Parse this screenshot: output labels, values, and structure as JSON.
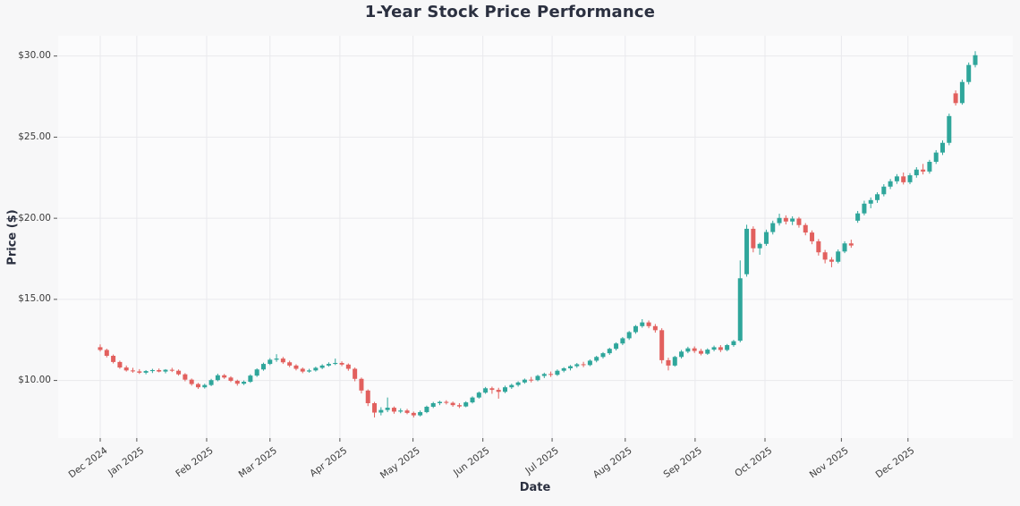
{
  "title": "1-Year Stock Price Performance",
  "colors": {
    "up": "#2fa69b",
    "down": "#e2605e",
    "figure_background": "#f7f7f8",
    "plot_background": "#fbfbfc",
    "grid": "#e9e9ed",
    "text": "#2b3040",
    "tick_text": "#3b3b3b"
  },
  "chart_data": {
    "type": "candlestick",
    "title": "1-Year Stock Price Performance",
    "xlabel": "Date",
    "ylabel": "Price ($)",
    "grid": true,
    "legend": false,
    "ylim": [
      6.45,
      31.25
    ],
    "y_ticks": [
      {
        "label": "$10.00",
        "value": 10
      },
      {
        "label": "$15.00",
        "value": 15
      },
      {
        "label": "$20.00",
        "value": 20
      },
      {
        "label": "$25.00",
        "value": 25
      },
      {
        "label": "$30.00",
        "value": 30
      }
    ],
    "x_ticks": [
      {
        "label": "Dec 2024",
        "index": 0
      },
      {
        "label": "Jan 2025",
        "index": 5.6
      },
      {
        "label": "Feb 2025",
        "index": 16.3
      },
      {
        "label": "Mar 2025",
        "index": 26.0
      },
      {
        "label": "Apr 2025",
        "index": 36.7
      },
      {
        "label": "May 2025",
        "index": 47.9
      },
      {
        "label": "Jun 2025",
        "index": 58.6
      },
      {
        "label": "Jul 2025",
        "index": 69.2
      },
      {
        "label": "Aug 2025",
        "index": 80.4
      },
      {
        "label": "Sep 2025",
        "index": 91.1
      },
      {
        "label": "Oct 2025",
        "index": 101.8
      },
      {
        "label": "Nov 2025",
        "index": 113.5
      },
      {
        "label": "Dec 2025",
        "index": 123.7
      }
    ],
    "date_range": {
      "start": "Dec 2024",
      "end": "Dec 2025"
    },
    "ohlc_format": [
      "open",
      "high",
      "low",
      "close"
    ],
    "ohlc": [
      [
        12.05,
        12.22,
        11.78,
        11.88
      ],
      [
        11.88,
        11.96,
        11.42,
        11.52
      ],
      [
        11.52,
        11.6,
        11.05,
        11.14
      ],
      [
        11.14,
        11.22,
        10.72,
        10.8
      ],
      [
        10.8,
        10.92,
        10.55,
        10.62
      ],
      [
        10.62,
        10.78,
        10.48,
        10.56
      ],
      [
        10.56,
        10.7,
        10.4,
        10.48
      ],
      [
        10.48,
        10.64,
        10.38,
        10.58
      ],
      [
        10.58,
        10.72,
        10.46,
        10.64
      ],
      [
        10.64,
        10.74,
        10.5,
        10.55
      ],
      [
        10.55,
        10.7,
        10.44,
        10.66
      ],
      [
        10.66,
        10.78,
        10.52,
        10.6
      ],
      [
        10.6,
        10.68,
        10.3,
        10.38
      ],
      [
        10.38,
        10.45,
        9.95,
        10.05
      ],
      [
        10.05,
        10.12,
        9.68,
        9.78
      ],
      [
        9.78,
        9.85,
        9.48,
        9.58
      ],
      [
        9.58,
        9.8,
        9.5,
        9.72
      ],
      [
        9.72,
        10.1,
        9.65,
        10.02
      ],
      [
        10.02,
        10.42,
        9.95,
        10.32
      ],
      [
        10.32,
        10.4,
        10.1,
        10.18
      ],
      [
        10.18,
        10.26,
        9.9,
        9.98
      ],
      [
        9.98,
        10.05,
        9.68,
        9.8
      ],
      [
        9.8,
        10.0,
        9.72,
        9.92
      ],
      [
        9.92,
        10.38,
        9.85,
        10.3
      ],
      [
        10.3,
        10.75,
        10.22,
        10.68
      ],
      [
        10.68,
        11.1,
        10.6,
        11.02
      ],
      [
        11.02,
        11.38,
        10.95,
        11.28
      ],
      [
        11.28,
        11.62,
        11.15,
        11.35
      ],
      [
        11.35,
        11.45,
        11.02,
        11.12
      ],
      [
        11.12,
        11.22,
        10.82,
        10.92
      ],
      [
        10.92,
        11.0,
        10.62,
        10.72
      ],
      [
        10.72,
        10.8,
        10.45,
        10.55
      ],
      [
        10.55,
        10.72,
        10.48,
        10.62
      ],
      [
        10.62,
        10.85,
        10.55,
        10.78
      ],
      [
        10.78,
        11.0,
        10.7,
        10.92
      ],
      [
        10.92,
        11.12,
        10.85,
        11.02
      ],
      [
        11.02,
        11.35,
        10.95,
        11.08
      ],
      [
        11.08,
        11.18,
        10.88,
        10.98
      ],
      [
        10.98,
        11.05,
        10.6,
        10.72
      ],
      [
        10.72,
        10.8,
        9.95,
        10.1
      ],
      [
        10.1,
        10.18,
        9.2,
        9.38
      ],
      [
        9.38,
        9.45,
        8.42,
        8.6
      ],
      [
        8.6,
        8.68,
        7.72,
        8.02
      ],
      [
        8.02,
        8.35,
        7.85,
        8.18
      ],
      [
        8.18,
        8.95,
        8.05,
        8.32
      ],
      [
        8.32,
        8.4,
        7.95,
        8.08
      ],
      [
        8.08,
        8.28,
        7.98,
        8.15
      ],
      [
        8.15,
        8.25,
        7.92,
        8.0
      ],
      [
        8.0,
        8.08,
        7.72,
        7.85
      ],
      [
        7.85,
        8.15,
        7.78,
        8.05
      ],
      [
        8.05,
        8.45,
        7.98,
        8.38
      ],
      [
        8.38,
        8.68,
        8.3,
        8.6
      ],
      [
        8.6,
        8.75,
        8.48,
        8.68
      ],
      [
        8.68,
        8.78,
        8.52,
        8.62
      ],
      [
        8.62,
        8.7,
        8.38,
        8.48
      ],
      [
        8.48,
        8.6,
        8.3,
        8.4
      ],
      [
        8.4,
        8.72,
        8.35,
        8.65
      ],
      [
        8.65,
        9.02,
        8.58,
        8.95
      ],
      [
        8.95,
        9.32,
        8.88,
        9.25
      ],
      [
        9.25,
        9.6,
        9.18,
        9.52
      ],
      [
        9.52,
        9.62,
        9.18,
        9.42
      ],
      [
        9.42,
        9.55,
        8.88,
        9.3
      ],
      [
        9.3,
        9.68,
        9.22,
        9.58
      ],
      [
        9.58,
        9.8,
        9.48,
        9.72
      ],
      [
        9.72,
        9.95,
        9.62,
        9.88
      ],
      [
        9.88,
        10.12,
        9.8,
        10.05
      ],
      [
        10.05,
        10.22,
        9.88,
        10.02
      ],
      [
        10.02,
        10.35,
        9.95,
        10.28
      ],
      [
        10.28,
        10.48,
        10.15,
        10.4
      ],
      [
        10.4,
        10.55,
        10.22,
        10.35
      ],
      [
        10.35,
        10.68,
        10.28,
        10.6
      ],
      [
        10.6,
        10.82,
        10.5,
        10.75
      ],
      [
        10.75,
        10.95,
        10.62,
        10.88
      ],
      [
        10.88,
        11.08,
        10.78,
        11.0
      ],
      [
        11.0,
        11.15,
        10.82,
        10.95
      ],
      [
        10.95,
        11.3,
        10.88,
        11.22
      ],
      [
        11.22,
        11.52,
        11.12,
        11.45
      ],
      [
        11.45,
        11.75,
        11.35,
        11.68
      ],
      [
        11.68,
        12.02,
        11.58,
        11.95
      ],
      [
        11.95,
        12.35,
        11.85,
        12.28
      ],
      [
        12.28,
        12.68,
        12.18,
        12.6
      ],
      [
        12.6,
        13.05,
        12.5,
        12.98
      ],
      [
        12.98,
        13.42,
        12.88,
        13.35
      ],
      [
        13.35,
        13.78,
        13.25,
        13.58
      ],
      [
        13.58,
        13.7,
        13.22,
        13.35
      ],
      [
        13.35,
        13.48,
        12.95,
        13.1
      ],
      [
        13.1,
        13.22,
        11.05,
        11.25
      ],
      [
        11.25,
        11.4,
        10.62,
        10.92
      ],
      [
        10.92,
        11.52,
        10.85,
        11.45
      ],
      [
        11.45,
        11.88,
        11.35,
        11.78
      ],
      [
        11.78,
        12.08,
        11.68,
        11.98
      ],
      [
        11.98,
        12.1,
        11.7,
        11.82
      ],
      [
        11.82,
        11.95,
        11.55,
        11.65
      ],
      [
        11.65,
        11.98,
        11.58,
        11.9
      ],
      [
        11.9,
        12.15,
        11.8,
        12.05
      ],
      [
        12.05,
        12.18,
        11.75,
        11.88
      ],
      [
        11.88,
        12.25,
        11.8,
        12.18
      ],
      [
        12.18,
        12.5,
        12.08,
        12.42
      ],
      [
        12.45,
        17.4,
        12.35,
        16.3
      ],
      [
        16.55,
        19.6,
        16.4,
        19.35
      ],
      [
        19.35,
        19.5,
        17.9,
        18.15
      ],
      [
        18.15,
        18.5,
        17.75,
        18.42
      ],
      [
        18.42,
        19.3,
        18.3,
        19.15
      ],
      [
        19.15,
        19.85,
        19.0,
        19.7
      ],
      [
        19.7,
        20.28,
        19.55,
        20.02
      ],
      [
        20.02,
        20.18,
        19.62,
        19.8
      ],
      [
        19.8,
        20.12,
        19.58,
        19.98
      ],
      [
        19.98,
        20.08,
        19.42,
        19.58
      ],
      [
        19.58,
        19.7,
        18.95,
        19.12
      ],
      [
        19.12,
        19.25,
        18.4,
        18.58
      ],
      [
        18.58,
        18.72,
        17.7,
        17.9
      ],
      [
        17.9,
        18.05,
        17.22,
        17.45
      ],
      [
        17.45,
        17.6,
        16.98,
        17.32
      ],
      [
        17.32,
        18.08,
        17.22,
        17.95
      ],
      [
        17.95,
        18.58,
        17.85,
        18.45
      ],
      [
        18.45,
        18.68,
        18.18,
        18.32
      ],
      [
        19.85,
        20.45,
        19.72,
        20.3
      ],
      [
        20.3,
        21.08,
        20.18,
        20.9
      ],
      [
        20.9,
        21.28,
        20.62,
        21.12
      ],
      [
        21.12,
        21.6,
        20.95,
        21.48
      ],
      [
        21.48,
        22.1,
        21.35,
        21.95
      ],
      [
        21.95,
        22.42,
        21.8,
        22.28
      ],
      [
        22.28,
        22.72,
        22.12,
        22.58
      ],
      [
        22.58,
        22.82,
        22.08,
        22.22
      ],
      [
        22.22,
        22.78,
        22.1,
        22.65
      ],
      [
        22.65,
        23.15,
        22.5,
        23.0
      ],
      [
        23.0,
        23.35,
        22.7,
        22.88
      ],
      [
        22.88,
        23.6,
        22.75,
        23.48
      ],
      [
        23.48,
        24.2,
        23.35,
        24.05
      ],
      [
        24.05,
        24.8,
        23.9,
        24.65
      ],
      [
        24.65,
        26.45,
        24.5,
        26.3
      ],
      [
        27.7,
        27.88,
        26.95,
        27.1
      ],
      [
        27.1,
        28.55,
        27.0,
        28.4
      ],
      [
        28.4,
        29.6,
        28.25,
        29.45
      ],
      [
        29.45,
        30.3,
        29.3,
        30.05
      ]
    ]
  }
}
